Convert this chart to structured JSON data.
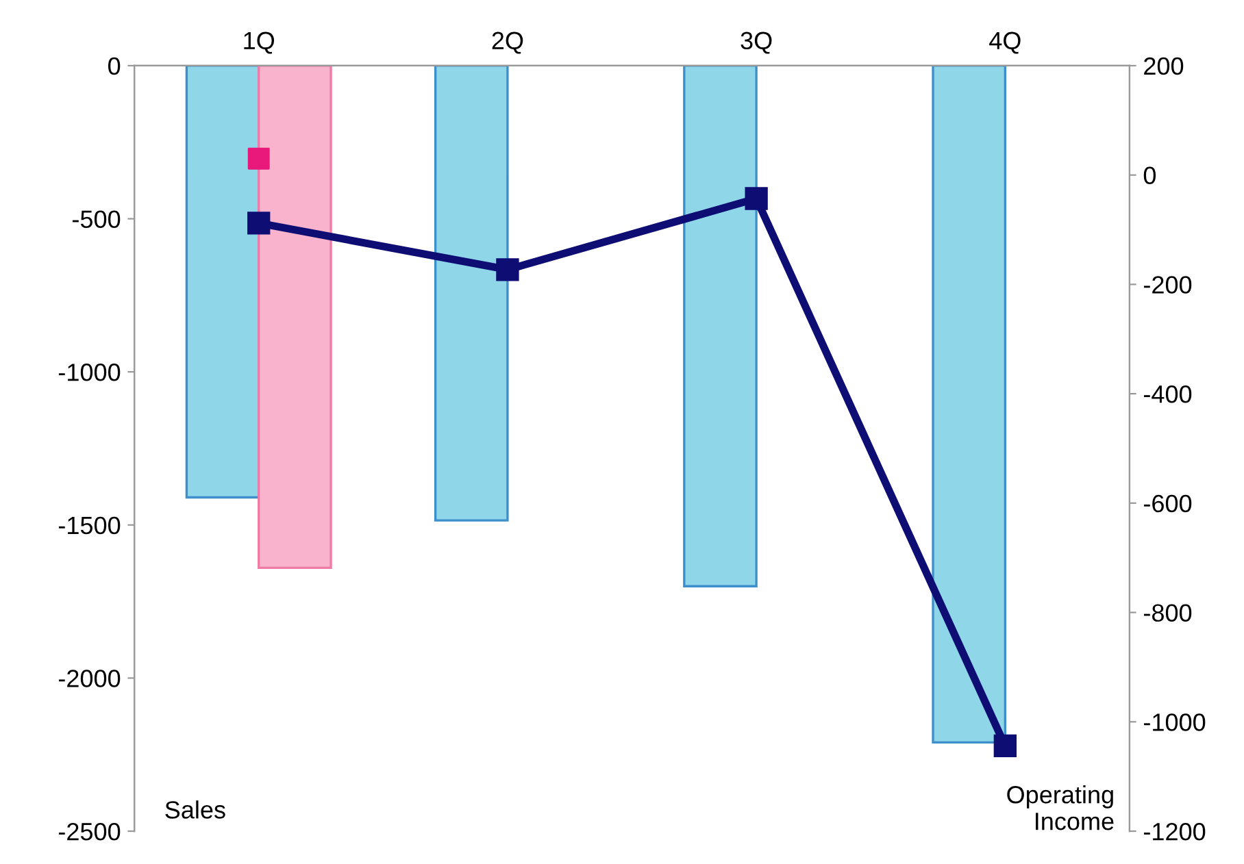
{
  "chart_data": {
    "type": "bar",
    "categories": [
      "1Q",
      "2Q",
      "3Q",
      "4Q"
    ],
    "series": [
      {
        "color": "#8fd6e8",
        "values": [
          -1410,
          -1485,
          -1700,
          -2210
        ]
      },
      {
        "color": "#f9b3cc",
        "values": [
          -1640,
          null,
          null,
          null
        ]
      },
      {
        "type": "line",
        "axis": "y2",
        "color": "#0d0d73",
        "marker": "square",
        "values": [
          -88,
          -173,
          -43,
          -1044
        ]
      },
      {
        "type": "scatter",
        "axis": "y2",
        "color": "#e8197a",
        "marker": "square",
        "values": [
          30,
          null,
          null,
          null
        ]
      }
    ],
    "ylabel": "Sales",
    "y2label": "Operating Income",
    "ylim": [
      -2500,
      0
    ],
    "yticks": [
      -2500,
      -2000,
      -1500,
      -1000,
      -500,
      0
    ],
    "y2lim": [
      -1200,
      200
    ],
    "y2ticks": [
      -1200,
      -1000,
      -800,
      -600,
      -400,
      -200,
      0,
      200
    ],
    "grid": false,
    "legend": false
  }
}
